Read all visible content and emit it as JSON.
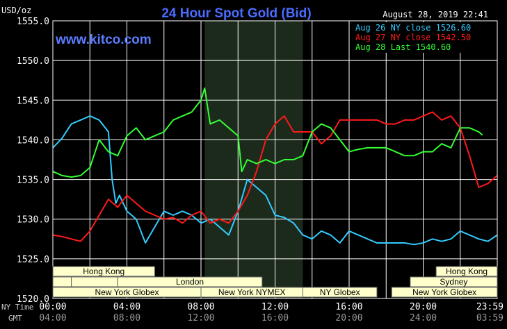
{
  "header": {
    "units": "USD/oz",
    "title": "24 Hour Spot Gold (Bid)",
    "timestamp": "August 28, 2019 22:41",
    "watermark": "www.kitco.com"
  },
  "colors": {
    "background": "#000000",
    "grid": "#ffffff",
    "title": "#4a6cff",
    "watermark": "#5b7cff",
    "aug26": "#33ccff",
    "aug27": "#ff1a1a",
    "aug28": "#33ff33",
    "session_fill": "#ffffcc",
    "shade": "#1c2a1c"
  },
  "legend": [
    {
      "label": "Aug 26 NY close 1526.60",
      "color": "#33ccff"
    },
    {
      "label": "Aug 27 NY close 1542.50",
      "color": "#ff1a1a"
    },
    {
      "label": "Aug 28 Last 1540.60",
      "color": "#33ff33"
    }
  ],
  "axes": {
    "row1_label": "NY Time",
    "row2_label": "GMT",
    "ny_ticks": [
      "00:00",
      "04:00",
      "08:00",
      "12:00",
      "16:00",
      "20:00",
      "23:59"
    ],
    "gmt_ticks": [
      "04:00",
      "08:00",
      "12:00",
      "16:00",
      "20:00",
      "24:00",
      "03:59"
    ]
  },
  "sessions": {
    "hong_kong_1": "Hong Kong",
    "london": "London",
    "ny_globex_1": "New York Globex",
    "ny_nymex": "New York NYMEX",
    "ny_globex_2": "NY Globex",
    "hong_kong_2": "Hong Kong",
    "sydney": "Sydney",
    "ny_globex_3": "New York Globex"
  },
  "chart_data": {
    "type": "line",
    "ylim": [
      1520,
      1555
    ],
    "yticks": [
      "1555.0",
      "1550.0",
      "1545.0",
      "1540.0",
      "1535.0",
      "1530.0",
      "1525.0",
      "1520.0"
    ],
    "x_unit": "NY time hours",
    "xlim": [
      0,
      24
    ],
    "shaded_region": [
      8.2,
      13.5
    ],
    "series": [
      {
        "name": "Aug 26",
        "color": "#33ccff",
        "points": [
          [
            0,
            1539
          ],
          [
            0.5,
            1540.2
          ],
          [
            1,
            1542
          ],
          [
            1.5,
            1542.5
          ],
          [
            2,
            1543
          ],
          [
            2.5,
            1542.5
          ],
          [
            3,
            1541
          ],
          [
            3.2,
            1535
          ],
          [
            3.4,
            1532
          ],
          [
            3.6,
            1533
          ],
          [
            4,
            1531
          ],
          [
            4.5,
            1530
          ],
          [
            5,
            1527
          ],
          [
            5.5,
            1529
          ],
          [
            6,
            1531
          ],
          [
            6.5,
            1530.5
          ],
          [
            7,
            1531
          ],
          [
            7.5,
            1530.5
          ],
          [
            8,
            1529.5
          ],
          [
            8.5,
            1530
          ],
          [
            9,
            1529
          ],
          [
            9.5,
            1528
          ],
          [
            10,
            1531
          ],
          [
            10.5,
            1535
          ],
          [
            11,
            1534
          ],
          [
            11.5,
            1533
          ],
          [
            12,
            1530.5
          ],
          [
            12.5,
            1530.2
          ],
          [
            13,
            1529.5
          ],
          [
            13.5,
            1528
          ],
          [
            14,
            1527.5
          ],
          [
            14.5,
            1528.5
          ],
          [
            15,
            1528
          ],
          [
            15.5,
            1527
          ],
          [
            16,
            1528.5
          ],
          [
            16.5,
            1528
          ],
          [
            17,
            1527.5
          ],
          [
            17.5,
            1527
          ],
          [
            18,
            1527
          ],
          [
            18.5,
            1527
          ],
          [
            19,
            1527
          ],
          [
            19.5,
            1526.8
          ],
          [
            20,
            1527
          ],
          [
            20.5,
            1527.5
          ],
          [
            21,
            1527.2
          ],
          [
            21.5,
            1527.5
          ],
          [
            22,
            1528.5
          ],
          [
            22.5,
            1528
          ],
          [
            23,
            1527.5
          ],
          [
            23.5,
            1527.2
          ],
          [
            24,
            1528
          ]
        ]
      },
      {
        "name": "Aug 27",
        "color": "#ff1a1a",
        "points": [
          [
            0,
            1528
          ],
          [
            0.5,
            1527.8
          ],
          [
            1,
            1527.5
          ],
          [
            1.5,
            1527.2
          ],
          [
            2,
            1528.5
          ],
          [
            2.5,
            1530.5
          ],
          [
            3,
            1532.5
          ],
          [
            3.5,
            1531.5
          ],
          [
            4,
            1533
          ],
          [
            4.5,
            1532
          ],
          [
            5,
            1531
          ],
          [
            5.5,
            1530.5
          ],
          [
            6,
            1530
          ],
          [
            6.5,
            1530.2
          ],
          [
            7,
            1529.5
          ],
          [
            7.5,
            1530.5
          ],
          [
            8,
            1531
          ],
          [
            8.5,
            1529.5
          ],
          [
            9,
            1530
          ],
          [
            9.5,
            1529.5
          ],
          [
            10,
            1531
          ],
          [
            10.5,
            1533
          ],
          [
            11,
            1536
          ],
          [
            11.5,
            1540
          ],
          [
            12,
            1542
          ],
          [
            12.5,
            1543
          ],
          [
            13,
            1541
          ],
          [
            13.5,
            1541
          ],
          [
            14,
            1541
          ],
          [
            14.5,
            1539.5
          ],
          [
            15,
            1540.5
          ],
          [
            15.5,
            1542.5
          ],
          [
            16,
            1542.5
          ],
          [
            16.5,
            1542.5
          ],
          [
            17,
            1542.5
          ],
          [
            17.5,
            1542.5
          ],
          [
            18,
            1542
          ],
          [
            18.5,
            1542
          ],
          [
            19,
            1542.5
          ],
          [
            19.5,
            1542.5
          ],
          [
            20,
            1543
          ],
          [
            20.5,
            1543.5
          ],
          [
            21,
            1542.5
          ],
          [
            21.5,
            1543
          ],
          [
            22,
            1541.5
          ],
          [
            22.5,
            1538
          ],
          [
            23,
            1534
          ],
          [
            23.5,
            1534.5
          ],
          [
            24,
            1535.5
          ]
        ]
      },
      {
        "name": "Aug 28",
        "color": "#33ff33",
        "points": [
          [
            0,
            1536
          ],
          [
            0.5,
            1535.5
          ],
          [
            1,
            1535.3
          ],
          [
            1.5,
            1535.5
          ],
          [
            2,
            1536.5
          ],
          [
            2.5,
            1540
          ],
          [
            3,
            1538.5
          ],
          [
            3.5,
            1538
          ],
          [
            4,
            1540.5
          ],
          [
            4.5,
            1541.5
          ],
          [
            5,
            1540
          ],
          [
            5.5,
            1540.5
          ],
          [
            6,
            1541
          ],
          [
            6.5,
            1542.5
          ],
          [
            7,
            1543
          ],
          [
            7.5,
            1543.5
          ],
          [
            8,
            1545
          ],
          [
            8.2,
            1546.5
          ],
          [
            8.5,
            1542
          ],
          [
            9,
            1542.5
          ],
          [
            9.5,
            1541.5
          ],
          [
            10,
            1540.5
          ],
          [
            10.2,
            1536
          ],
          [
            10.5,
            1537.5
          ],
          [
            11,
            1537
          ],
          [
            11.5,
            1537.5
          ],
          [
            12,
            1537
          ],
          [
            12.5,
            1537.5
          ],
          [
            13,
            1537.5
          ],
          [
            13.5,
            1538
          ],
          [
            14,
            1541
          ],
          [
            14.5,
            1542
          ],
          [
            15,
            1541.5
          ],
          [
            15.5,
            1540
          ],
          [
            16,
            1538.5
          ],
          [
            16.5,
            1538.8
          ],
          [
            17,
            1539
          ],
          [
            17.5,
            1539
          ],
          [
            18,
            1539
          ],
          [
            18.5,
            1538.5
          ],
          [
            19,
            1538
          ],
          [
            19.5,
            1538
          ],
          [
            20,
            1538.5
          ],
          [
            20.5,
            1538.5
          ],
          [
            21,
            1539.5
          ],
          [
            21.5,
            1539
          ],
          [
            22,
            1541.5
          ],
          [
            22.5,
            1541.5
          ],
          [
            23,
            1541
          ],
          [
            23.2,
            1540.6
          ]
        ]
      }
    ]
  }
}
